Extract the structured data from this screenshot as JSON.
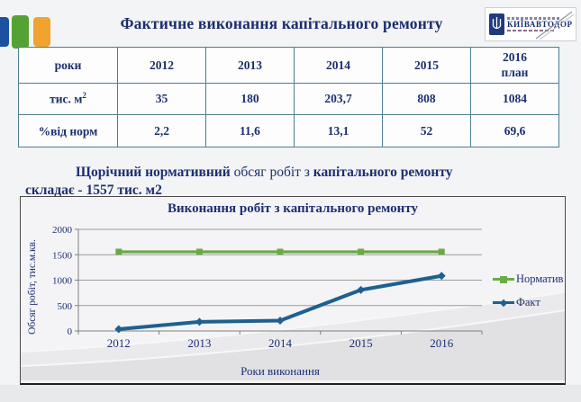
{
  "slide": {
    "title": "Фактичне виконання капітального ремонту"
  },
  "logo": {
    "text": "КИЇВАВТОДОР"
  },
  "table": {
    "corner_header": "роки",
    "year_headers": [
      "2012",
      "2013",
      "2014",
      "2015"
    ],
    "plan_header_line1": "2016",
    "plan_header_line2": "план",
    "rows": [
      {
        "label": "тис. м",
        "label_sup": "2",
        "values": [
          "35",
          "180",
          "203,7",
          "808",
          "1084"
        ]
      },
      {
        "label": "%від норм",
        "label_sup": "",
        "values": [
          "2,2",
          "11,6",
          "13,1",
          "52",
          "69,6"
        ]
      }
    ]
  },
  "note": {
    "bold1": "Щорічний нормативний",
    "regular": " обсяг робіт з ",
    "bold2": "капітального ремонту",
    "line2": "складає - 1557 тис. м2"
  },
  "chart_data": {
    "type": "line",
    "title": "Виконання робіт з капітального ремонту",
    "categories": [
      "2012",
      "2013",
      "2014",
      "2015",
      "2016"
    ],
    "series": [
      {
        "name": "Норматив",
        "values": [
          1557,
          1557,
          1557,
          1557,
          1557
        ],
        "color": "#6aab45",
        "marker": "square"
      },
      {
        "name": "Факт",
        "values": [
          35,
          180,
          203.7,
          808,
          1084
        ],
        "color": "#1e6090",
        "marker": "diamond"
      }
    ],
    "xlabel": "Роки виконання",
    "ylabel": "Обсяг робіт, тис.м.кв.",
    "ylim": [
      0,
      2000
    ],
    "ytick_step": 500,
    "grid": true,
    "legend_position": "right"
  },
  "colors": {
    "navy_text": "#1c2f72",
    "table_border": "#4e7d93",
    "accent_blue": "#1d50a0",
    "accent_green": "#55a234",
    "accent_orange": "#f0a32f",
    "gridline": "#9c9c9c"
  }
}
